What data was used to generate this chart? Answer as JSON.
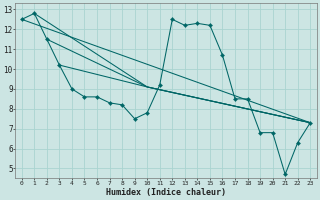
{
  "xlabel": "Humidex (Indice chaleur)",
  "bg_color": "#cce5e3",
  "grid_color": "#aad4d0",
  "line_color": "#006666",
  "series1_x": [
    0,
    1,
    2,
    3,
    4,
    5,
    6,
    7,
    8,
    9,
    10,
    11,
    12,
    13,
    14,
    15,
    16,
    17,
    18,
    19,
    20,
    21,
    22,
    23
  ],
  "series1_y": [
    12.5,
    12.8,
    11.5,
    10.2,
    9.0,
    8.6,
    8.6,
    8.3,
    8.2,
    7.5,
    7.8,
    9.2,
    12.5,
    12.2,
    12.3,
    12.2,
    10.7,
    8.5,
    8.5,
    6.8,
    6.8,
    4.7,
    6.3,
    7.3
  ],
  "line2": {
    "x": [
      0,
      23
    ],
    "y": [
      12.5,
      7.3
    ]
  },
  "line3": {
    "x": [
      2,
      10,
      23
    ],
    "y": [
      11.5,
      9.1,
      7.3
    ]
  },
  "line4": {
    "x": [
      3,
      10,
      23
    ],
    "y": [
      10.2,
      9.1,
      7.3
    ]
  },
  "line5": {
    "x": [
      1,
      10,
      23
    ],
    "y": [
      12.8,
      9.1,
      7.3
    ]
  },
  "ylim": [
    4.5,
    13.3
  ],
  "xlim": [
    -0.5,
    23.5
  ],
  "yticks": [
    5,
    6,
    7,
    8,
    9,
    10,
    11,
    12,
    13
  ],
  "xticks": [
    0,
    1,
    2,
    3,
    4,
    5,
    6,
    7,
    8,
    9,
    10,
    11,
    12,
    13,
    14,
    15,
    16,
    17,
    18,
    19,
    20,
    21,
    22,
    23
  ]
}
